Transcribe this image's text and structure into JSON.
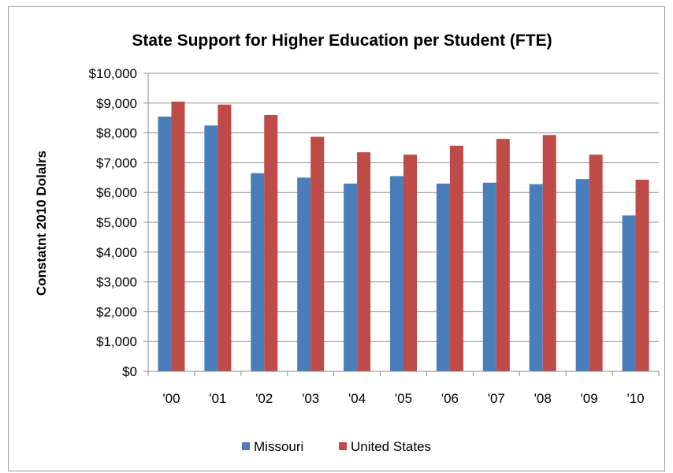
{
  "chart_data": {
    "type": "bar",
    "title": "State Support for Higher Education per Student (FTE)",
    "ylabel": "Constatnt 2010 Dolalrs",
    "xlabel": "",
    "categories": [
      "'00",
      "'01",
      "'02",
      "'03",
      "'04",
      "'05",
      "'06",
      "'07",
      "'08",
      "'09",
      "'10"
    ],
    "series": [
      {
        "name": "Missouri",
        "color": "#4a7ebb",
        "values": [
          8550,
          8250,
          6650,
          6500,
          6300,
          6550,
          6300,
          6330,
          6280,
          6450,
          5230
        ]
      },
      {
        "name": "United States",
        "color": "#be4b48",
        "values": [
          9050,
          8950,
          8600,
          7870,
          7350,
          7270,
          7570,
          7800,
          7930,
          7270,
          6430
        ]
      }
    ],
    "ylim": [
      0,
      10000
    ],
    "yticks": [
      0,
      1000,
      2000,
      3000,
      4000,
      5000,
      6000,
      7000,
      8000,
      9000,
      10000
    ],
    "ytick_labels": [
      "$0",
      "$1,000",
      "$2,000",
      "$3,000",
      "$4,000",
      "$5,000",
      "$6,000",
      "$7,000",
      "$8,000",
      "$9,000",
      "$10,000"
    ],
    "grid": true,
    "legend_position": "bottom"
  }
}
